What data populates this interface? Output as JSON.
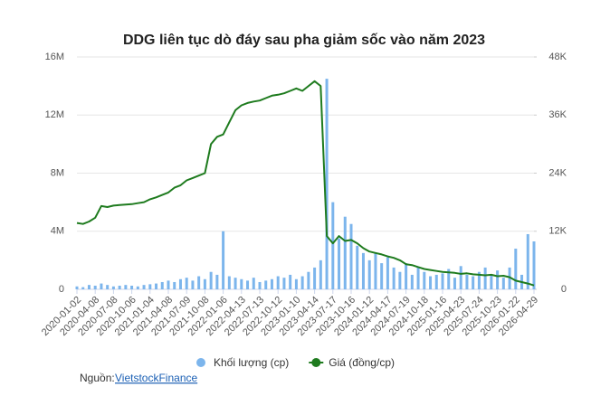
{
  "chart_data": {
    "type": "combo",
    "title": "DDG liên tục dò đáy sau pha giảm sốc vào năm 2023",
    "categories": [
      "2020-01-02",
      null,
      null,
      "2020-04-08",
      null,
      null,
      "2020-07-08",
      null,
      null,
      "2020-10-06",
      null,
      null,
      "2021-01-04",
      null,
      null,
      "2021-04-08",
      null,
      null,
      "2021-07-09",
      null,
      null,
      "2021-10-08",
      null,
      null,
      "2022-01-06",
      null,
      null,
      "2022-04-13",
      null,
      null,
      "2022-07-13",
      null,
      null,
      "2022-10-12",
      null,
      null,
      "2023-01-10",
      null,
      null,
      "2023-04-14",
      null,
      null,
      "2023-07-17",
      null,
      null,
      "2023-10-16",
      null,
      null,
      "2024-01-12",
      null,
      null,
      "2024-04-17",
      null,
      null,
      "2024-07-19",
      null,
      null,
      "2024-10-18",
      null,
      null,
      "2025-01-16",
      null,
      null,
      "2025-04-23",
      null,
      null,
      "2025-07-24",
      null,
      null,
      "2025-10-23",
      null,
      null,
      "2026-01-22",
      null,
      null,
      "2026-04-29"
    ],
    "series": [
      {
        "name": "Khối lượng (cp)",
        "type": "bar",
        "color": "#7cb5ec",
        "values": [
          200000,
          150000,
          300000,
          250000,
          400000,
          300000,
          200000,
          250000,
          300000,
          250000,
          200000,
          300000,
          350000,
          400000,
          500000,
          600000,
          500000,
          700000,
          800000,
          600000,
          900000,
          700000,
          1200000,
          1000000,
          4000000,
          900000,
          800000,
          700000,
          600000,
          800000,
          500000,
          600000,
          700000,
          900000,
          800000,
          1000000,
          700000,
          900000,
          1200000,
          1500000,
          2000000,
          14500000,
          6000000,
          3500000,
          5000000,
          4500000,
          3000000,
          2500000,
          2000000,
          2500000,
          1800000,
          2200000,
          1500000,
          1200000,
          1800000,
          1000000,
          1500000,
          1200000,
          900000,
          1000000,
          1100000,
          1400000,
          800000,
          1600000,
          1000000,
          900000,
          1200000,
          1500000,
          1000000,
          1300000,
          800000,
          1500000,
          2800000,
          1000000,
          3800000,
          3300000
        ]
      },
      {
        "name": "Giá (đồng/cp)",
        "type": "line",
        "axis": "y2",
        "color": "#1e7b1e",
        "values": [
          13700,
          13500,
          14000,
          14800,
          17200,
          17000,
          17300,
          17400,
          17500,
          17600,
          17800,
          18000,
          18600,
          19000,
          19500,
          20000,
          21000,
          21500,
          22500,
          23000,
          23500,
          24000,
          30000,
          31500,
          32000,
          34500,
          37000,
          38000,
          38500,
          38800,
          39000,
          39500,
          40000,
          40200,
          40500,
          41000,
          41500,
          41000,
          42000,
          43000,
          42000,
          11000,
          9500,
          11000,
          10000,
          10200,
          9500,
          8500,
          7800,
          7500,
          7200,
          6800,
          6500,
          6000,
          5200,
          5000,
          4600,
          4200,
          4000,
          3800,
          3600,
          3500,
          3400,
          3200,
          3300,
          3100,
          3000,
          2900,
          3000,
          2700,
          2800,
          2500,
          1800,
          1500,
          1200,
          800
        ]
      }
    ],
    "ylim": [
      0,
      16000000
    ],
    "yticks": [
      0,
      {
        "value": 4000000,
        "label": "4M"
      },
      {
        "value": 8000000,
        "label": "8M"
      },
      {
        "value": 12000000,
        "label": "12M"
      },
      {
        "value": 16000000,
        "label": "16M"
      }
    ],
    "y2lim": [
      0,
      48000
    ],
    "y2ticks": [
      0,
      {
        "value": 12000,
        "label": "12K"
      },
      {
        "value": 24000,
        "label": "24K"
      },
      {
        "value": 36000,
        "label": "36K"
      },
      {
        "value": 48000,
        "label": "48K"
      }
    ],
    "grid": true,
    "source_prefix": "Nguồn:",
    "source": "VietstockFinance"
  }
}
